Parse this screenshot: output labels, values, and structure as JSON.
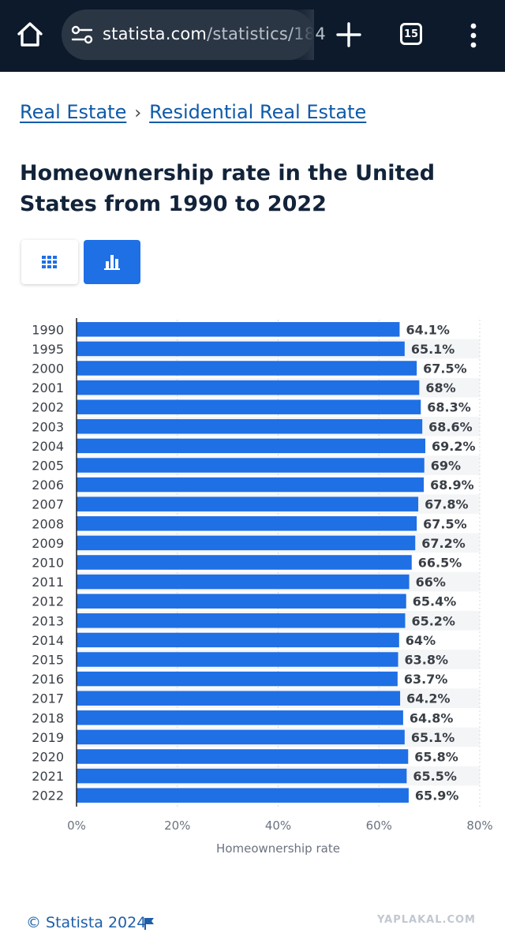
{
  "browser": {
    "url_domain": "statista.com",
    "url_path": "/statistics/184",
    "tab_count": "15",
    "icons": [
      "home-icon",
      "site-settings-icon",
      "plus-icon",
      "tab-switcher-icon",
      "more-vert-icon"
    ]
  },
  "breadcrumb": {
    "items": [
      "Real Estate",
      "Residential Real Estate"
    ],
    "separator": "›"
  },
  "page": {
    "title": "Homeownership rate in the United States from 1990 to 2022"
  },
  "view_toggle": {
    "options": [
      "table-icon",
      "bar-chart-icon"
    ],
    "selected": "bar-chart-icon",
    "accent_color": "#1f6fe5"
  },
  "chart_data": {
    "type": "bar",
    "orientation": "horizontal",
    "categories": [
      "1990",
      "1995",
      "2000",
      "2001",
      "2002",
      "2003",
      "2004",
      "2005",
      "2006",
      "2007",
      "2008",
      "2009",
      "2010",
      "2011",
      "2012",
      "2013",
      "2014",
      "2015",
      "2016",
      "2017",
      "2018",
      "2019",
      "2020",
      "2021",
      "2022"
    ],
    "values": [
      64.1,
      65.1,
      67.5,
      68,
      68.3,
      68.6,
      69.2,
      69,
      68.9,
      67.8,
      67.5,
      67.2,
      66.5,
      66,
      65.4,
      65.2,
      64,
      63.8,
      63.7,
      64.2,
      64.8,
      65.1,
      65.8,
      65.5,
      65.9
    ],
    "data_labels": [
      "64.1%",
      "65.1%",
      "67.5%",
      "68%",
      "68.3%",
      "68.6%",
      "69.2%",
      "69%",
      "68.9%",
      "67.8%",
      "67.5%",
      "67.2%",
      "66.5%",
      "66%",
      "65.4%",
      "65.2%",
      "64%",
      "63.8%",
      "63.7%",
      "64.2%",
      "64.8%",
      "65.1%",
      "65.8%",
      "65.5%",
      "65.9%"
    ],
    "xlabel": "Homeownership rate",
    "ylabel": "",
    "xlim": [
      0,
      80
    ],
    "x_ticks": [
      0,
      20,
      40,
      60,
      80
    ],
    "x_tick_labels": [
      "0%",
      "20%",
      "40%",
      "60%",
      "80%"
    ],
    "grid": true,
    "bar_color": "#1f6fe5"
  },
  "footer": {
    "credit": "© Statista 2024",
    "watermark": "YAPLAKAL.COM"
  }
}
